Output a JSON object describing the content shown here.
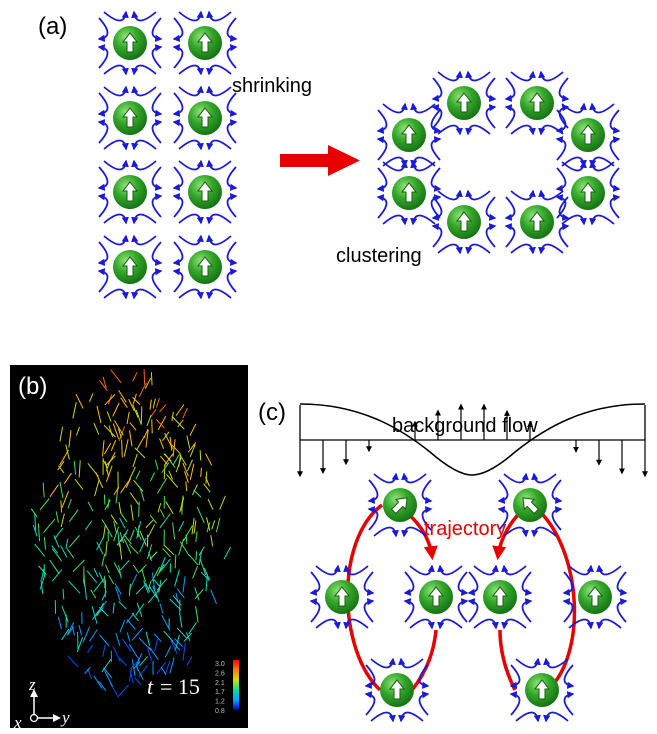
{
  "panel_a": {
    "label": "(a)",
    "shrinking": "shrinking",
    "clustering": "clustering"
  },
  "panel_b": {
    "label": "(b)",
    "time_var": "t",
    "time_value": "= 15",
    "axis_z": "z",
    "axis_y": "y",
    "axis_x": "x",
    "colorbar_ticks": [
      "3.0",
      "2.6",
      "2.1",
      "1.7",
      "1.2",
      "0.8"
    ]
  },
  "panel_c": {
    "label": "(c)",
    "background_flow": "background flow",
    "trajectory": "trajectory"
  },
  "colors": {
    "sphere": "#2e9a1e",
    "flow_lines": "#1a1adc",
    "arrow_red": "#e60000",
    "panel_b_bg": "#000000"
  },
  "icons": {
    "swimmer": "green-sphere-with-white-arrow",
    "flow": "blue-curved-arrow"
  }
}
